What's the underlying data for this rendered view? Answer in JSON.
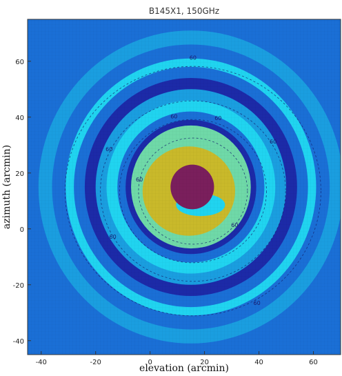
{
  "chart_data": {
    "type": "heatmap",
    "title": "B145X1, 150GHz",
    "xlabel": "elevation (arcmin)",
    "ylabel": "azimuth (arcmin)",
    "xlim": [
      -45,
      70
    ],
    "ylim": [
      -45,
      75
    ],
    "xticks": [
      -40,
      -20,
      0,
      20,
      40,
      60
    ],
    "yticks": [
      -40,
      -20,
      0,
      20,
      40,
      60
    ],
    "beam_center": [
      15,
      15
    ],
    "color_levels": [
      {
        "level": "peak",
        "color": "#7a1f5c"
      },
      {
        "level": "main lobe shoulder",
        "color": "#c9b92a"
      },
      {
        "level": "first sidelobe",
        "color": "#6fd9a8"
      },
      {
        "level": "bright ring",
        "color": "#20d4f0"
      },
      {
        "level": "mid ring",
        "color": "#1a9ee0"
      },
      {
        "level": "background",
        "color": "#1a6fd6"
      },
      {
        "level": "null",
        "color": "#1c2aa8"
      }
    ],
    "contour_labels": [
      "60",
      "60",
      "60",
      "60",
      "60",
      "60",
      "60",
      "60",
      "60"
    ]
  }
}
